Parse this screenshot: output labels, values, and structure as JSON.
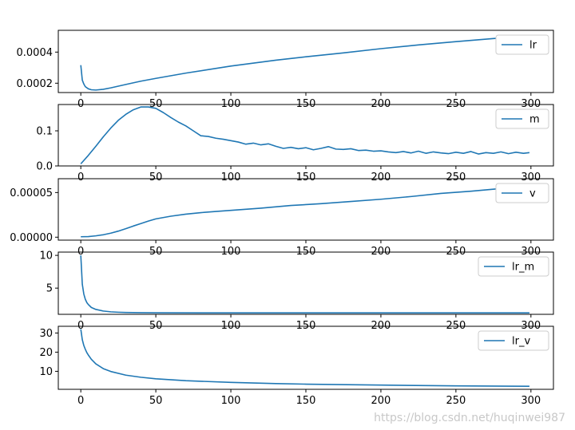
{
  "watermark": "https://blog.csdn.net/huqinwei987",
  "colors": {
    "series": "#1f77b4"
  },
  "chart_data": [
    {
      "type": "line",
      "legend": "top-right",
      "xlim": [
        -15,
        315
      ],
      "ylim": [
        0.00014,
        0.00054
      ],
      "xticks": [
        0,
        50,
        100,
        150,
        200,
        250,
        300
      ],
      "xtick_labels": [
        "0",
        "50",
        "100",
        "150",
        "200",
        "250",
        "300"
      ],
      "yticks": [
        0.0002,
        0.0004
      ],
      "ytick_labels": [
        "0.0002",
        "0.0004"
      ],
      "series": [
        {
          "name": "lr",
          "x": [
            0,
            1,
            2,
            3,
            5,
            7,
            10,
            15,
            20,
            30,
            40,
            50,
            70,
            100,
            130,
            150,
            175,
            200,
            225,
            250,
            275,
            299
          ],
          "y": [
            0.000316,
            0.00022,
            0.000195,
            0.000178,
            0.000164,
            0.000158,
            0.000156,
            0.000161,
            0.00017,
            0.000192,
            0.000213,
            0.000231,
            0.000265,
            0.00031,
            0.000348,
            0.00037,
            0.000395,
            0.000422,
            0.000446,
            0.000467,
            0.000487,
            0.000505
          ]
        }
      ]
    },
    {
      "type": "line",
      "legend": "top-right",
      "xlim": [
        -15,
        315
      ],
      "ylim": [
        0,
        0.175
      ],
      "xticks": [
        0,
        50,
        100,
        150,
        200,
        250,
        300
      ],
      "xtick_labels": [
        "0",
        "50",
        "100",
        "150",
        "200",
        "250",
        "300"
      ],
      "yticks": [
        0,
        0.1
      ],
      "ytick_labels": [
        "0.0",
        "0.1"
      ],
      "series": [
        {
          "name": "m",
          "x": [
            0,
            5,
            10,
            15,
            20,
            25,
            30,
            35,
            40,
            45,
            50,
            55,
            60,
            65,
            70,
            75,
            80,
            85,
            90,
            95,
            100,
            105,
            110,
            115,
            120,
            125,
            130,
            135,
            140,
            145,
            150,
            155,
            160,
            165,
            170,
            175,
            180,
            185,
            190,
            195,
            200,
            205,
            210,
            215,
            220,
            225,
            230,
            235,
            240,
            245,
            250,
            255,
            260,
            265,
            270,
            275,
            280,
            285,
            290,
            295,
            299
          ],
          "y": [
            0.006,
            0.03,
            0.056,
            0.083,
            0.108,
            0.13,
            0.147,
            0.16,
            0.168,
            0.168,
            0.164,
            0.152,
            0.138,
            0.125,
            0.114,
            0.1,
            0.086,
            0.084,
            0.079,
            0.076,
            0.072,
            0.068,
            0.062,
            0.065,
            0.06,
            0.063,
            0.056,
            0.05,
            0.053,
            0.049,
            0.052,
            0.046,
            0.05,
            0.055,
            0.048,
            0.047,
            0.049,
            0.044,
            0.045,
            0.042,
            0.043,
            0.04,
            0.038,
            0.041,
            0.037,
            0.042,
            0.036,
            0.04,
            0.037,
            0.035,
            0.039,
            0.036,
            0.041,
            0.034,
            0.038,
            0.036,
            0.04,
            0.035,
            0.039,
            0.036,
            0.038
          ]
        }
      ]
    },
    {
      "type": "line",
      "legend": "top-right",
      "xlim": [
        -15,
        315
      ],
      "ylim": [
        -3.3e-06,
        6.55e-05
      ],
      "xticks": [
        0,
        50,
        100,
        150,
        200,
        250,
        300
      ],
      "xtick_labels": [
        "0",
        "50",
        "100",
        "150",
        "200",
        "250",
        "300"
      ],
      "yticks": [
        0,
        5e-05
      ],
      "ytick_labels": [
        "0.00000",
        "0.00005"
      ],
      "series": [
        {
          "name": "v",
          "x": [
            0,
            5,
            10,
            15,
            20,
            25,
            30,
            35,
            40,
            45,
            50,
            60,
            70,
            80,
            90,
            100,
            120,
            140,
            160,
            180,
            200,
            220,
            240,
            260,
            280,
            299
          ],
          "y": [
            5e-07,
            7e-07,
            1.5e-06,
            2.7e-06,
            4.5e-06,
            6.8e-06,
            9.5e-06,
            1.25e-05,
            1.52e-05,
            1.8e-05,
            2.05e-05,
            2.35e-05,
            2.58e-05,
            2.75e-05,
            2.88e-05,
            3e-05,
            3.25e-05,
            3.55e-05,
            3.75e-05,
            4e-05,
            4.25e-05,
            4.55e-05,
            4.9e-05,
            5.15e-05,
            5.45e-05,
            5.75e-05
          ]
        }
      ]
    },
    {
      "type": "line",
      "legend": "top-right",
      "xlim": [
        -15,
        315
      ],
      "ylim": [
        1.0,
        10.5
      ],
      "xticks": [
        0,
        50,
        100,
        150,
        200,
        250,
        300
      ],
      "xtick_labels": [
        "0",
        "50",
        "100",
        "150",
        "200",
        "250",
        "300"
      ],
      "yticks": [
        5,
        10
      ],
      "ytick_labels": [
        "5",
        "10"
      ],
      "series": [
        {
          "name": "lr_m",
          "x": [
            0,
            1,
            2,
            3,
            4,
            5,
            7,
            10,
            15,
            20,
            25,
            30,
            40,
            50,
            100,
            150,
            200,
            250,
            299
          ],
          "y": [
            10.0,
            5.6,
            4.1,
            3.3,
            2.8,
            2.5,
            2.05,
            1.75,
            1.5,
            1.38,
            1.32,
            1.28,
            1.25,
            1.23,
            1.22,
            1.22,
            1.22,
            1.22,
            1.22
          ]
        }
      ]
    },
    {
      "type": "line",
      "legend": "top-right",
      "xlim": [
        -15,
        315
      ],
      "ylim": [
        0.6,
        33.5
      ],
      "xticks": [
        0,
        50,
        100,
        150,
        200,
        250,
        300
      ],
      "xtick_labels": [
        "0",
        "50",
        "100",
        "150",
        "200",
        "250",
        "300"
      ],
      "yticks": [
        10,
        20,
        30
      ],
      "ytick_labels": [
        "10",
        "20",
        "30"
      ],
      "series": [
        {
          "name": "lr_v",
          "x": [
            0,
            1,
            2,
            3,
            4,
            5,
            7,
            10,
            15,
            20,
            30,
            40,
            50,
            70,
            100,
            130,
            150,
            200,
            250,
            299
          ],
          "y": [
            32.0,
            26.5,
            23.5,
            21.5,
            19.8,
            18.5,
            16.3,
            13.9,
            11.4,
            9.9,
            8.0,
            6.9,
            6.1,
            5.1,
            4.2,
            3.6,
            3.3,
            2.8,
            2.4,
            2.2
          ]
        }
      ]
    }
  ]
}
